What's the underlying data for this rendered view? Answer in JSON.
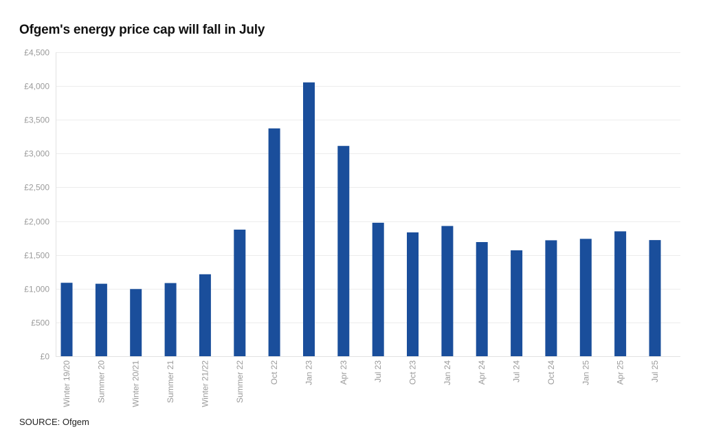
{
  "title": "Ofgem's energy price cap will fall in July",
  "source": "SOURCE: Ofgem",
  "chart_data": {
    "type": "bar",
    "title": "Ofgem's energy price cap will fall in July",
    "xlabel": "",
    "ylabel": "",
    "ylim": [
      0,
      4500
    ],
    "yticks": [
      0,
      500,
      1000,
      1500,
      2000,
      2500,
      3000,
      3500,
      4000,
      4500
    ],
    "ytick_labels": [
      "£0",
      "£500",
      "£1,000",
      "£1,500",
      "£2,000",
      "£2,500",
      "£3,000",
      "£3,500",
      "£4,000",
      "£4,500"
    ],
    "grid": true,
    "bar_color": "#1a4e9b",
    "categories": [
      "Winter 19/20",
      "Summer 20",
      "Winter 20/21",
      "Summer 21",
      "Winter 21/22",
      "Summer 22",
      "Oct 22",
      "Jan 23",
      "Apr 23",
      "Jul 23",
      "Oct 23",
      "Jan 24",
      "Apr 24",
      "Jul 24",
      "Oct 24",
      "Jan 25",
      "Apr 25",
      "Jul 25"
    ],
    "values": [
      1087,
      1073,
      995,
      1083,
      1214,
      1874,
      3373,
      4054,
      3113,
      1976,
      1834,
      1928,
      1690,
      1568,
      1717,
      1738,
      1849,
      1720
    ]
  }
}
